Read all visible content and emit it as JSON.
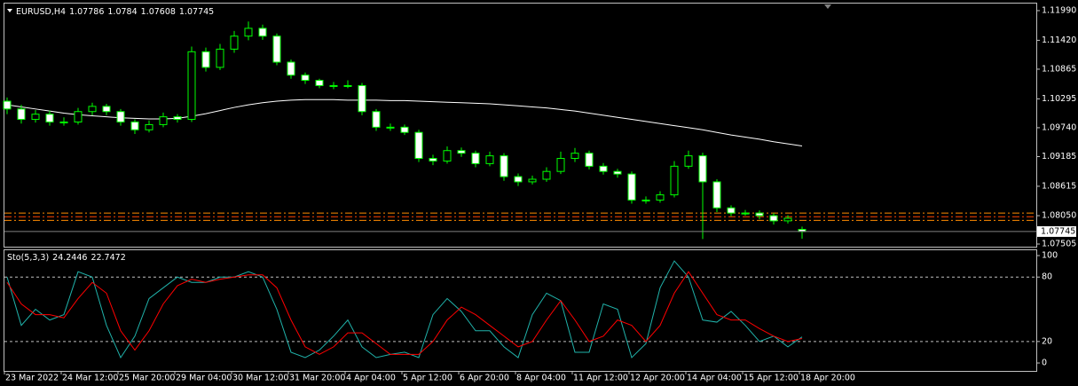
{
  "chart_data": {
    "type": "candlestick",
    "symbol": "EURUSD,H4",
    "categories": [
      "23 Mar 2022",
      null,
      null,
      null,
      "24 Mar 12:00",
      null,
      null,
      null,
      "25 Mar 20:00",
      null,
      null,
      null,
      "29 Mar 04:00",
      null,
      null,
      null,
      "30 Mar 12:00",
      null,
      null,
      null,
      "31 Mar 20:00",
      null,
      null,
      null,
      "4 Apr 04:00",
      null,
      null,
      null,
      "5 Apr 12:00",
      null,
      null,
      null,
      "6 Apr 20:00",
      null,
      null,
      null,
      "8 Apr 04:00",
      null,
      null,
      null,
      "11 Apr 12:00",
      null,
      null,
      null,
      "12 Apr 20:00",
      null,
      null,
      null,
      "14 Apr 04:00",
      null,
      null,
      null,
      "15 Apr 12:00",
      null,
      null,
      null,
      "18 Apr 20:00"
    ],
    "open": [
      1.1025,
      1.101,
      1.099,
      1.1,
      1.0985,
      1.0985,
      1.1005,
      1.1015,
      1.1005,
      1.0985,
      1.097,
      1.098,
      1.0995,
      1.099,
      1.112,
      1.109,
      1.1125,
      1.115,
      1.1165,
      1.115,
      1.11,
      1.1075,
      1.1065,
      1.1055,
      1.1055,
      1.1055,
      1.1005,
      1.0975,
      1.0975,
      1.0965,
      1.0915,
      1.091,
      1.093,
      1.0925,
      1.0905,
      1.092,
      1.088,
      1.087,
      1.0875,
      1.089,
      1.0915,
      1.0925,
      1.09,
      1.089,
      1.0885,
      1.0835,
      1.0835,
      1.0845,
      1.09,
      1.092,
      1.087,
      1.082,
      1.081,
      1.081,
      1.0805,
      1.0795,
      1.07786
    ],
    "high": [
      1.1032,
      1.1018,
      1.1008,
      1.1007,
      1.0994,
      1.1012,
      1.1022,
      1.102,
      1.101,
      1.099,
      1.0988,
      1.1003,
      1.1,
      1.113,
      1.1128,
      1.1135,
      1.116,
      1.1178,
      1.1172,
      1.1155,
      1.1105,
      1.108,
      1.1068,
      1.1062,
      1.1065,
      1.106,
      1.101,
      1.0982,
      1.098,
      1.097,
      1.0922,
      1.0938,
      1.0936,
      1.093,
      1.0928,
      1.0925,
      1.0886,
      1.0882,
      1.0898,
      1.0928,
      1.0935,
      1.093,
      1.0906,
      1.0895,
      1.089,
      1.0842,
      1.0852,
      1.091,
      1.093,
      1.0926,
      1.0875,
      1.0825,
      1.0816,
      1.0815,
      1.081,
      1.0806,
      1.0784
    ],
    "low": [
      1.1,
      1.0982,
      1.0984,
      1.0978,
      1.0978,
      1.098,
      1.0998,
      1.0998,
      1.0978,
      1.0962,
      1.0965,
      1.0975,
      1.0984,
      1.0985,
      1.1082,
      1.1085,
      1.1118,
      1.1142,
      1.1143,
      1.1094,
      1.1068,
      1.1058,
      1.105,
      1.1048,
      1.105,
      1.0998,
      1.0968,
      1.0968,
      1.096,
      1.0908,
      1.0902,
      1.0905,
      1.0918,
      1.0898,
      1.09,
      1.0872,
      1.0862,
      1.0865,
      1.087,
      1.0885,
      1.0908,
      1.0894,
      1.0884,
      1.0878,
      1.0828,
      1.0828,
      1.083,
      1.084,
      1.0895,
      1.076,
      1.0812,
      1.0804,
      1.0805,
      1.0798,
      1.0788,
      1.079,
      1.07608
    ],
    "close": [
      1.101,
      1.099,
      1.1,
      1.0985,
      1.0985,
      1.1005,
      1.1015,
      1.1005,
      1.0985,
      1.097,
      1.098,
      1.0995,
      1.099,
      1.112,
      1.109,
      1.1125,
      1.115,
      1.1165,
      1.115,
      1.11,
      1.1075,
      1.1065,
      1.1055,
      1.1055,
      1.1055,
      1.1005,
      1.0975,
      1.0975,
      1.0965,
      1.0915,
      1.091,
      1.093,
      1.0925,
      1.0905,
      1.092,
      1.088,
      1.087,
      1.0875,
      1.089,
      1.0915,
      1.0925,
      1.09,
      1.089,
      1.0885,
      1.0835,
      1.0835,
      1.0845,
      1.09,
      1.092,
      1.087,
      1.082,
      1.081,
      1.081,
      1.0805,
      1.0795,
      1.08,
      1.07745
    ],
    "line_color": "#00ff00",
    "up_color": "#000000",
    "down_color": "#ffffff",
    "ylim": [
      1.07454,
      1.12143
    ],
    "yticks": [
      {
        "value": 1.1199,
        "label": "1.11990"
      },
      {
        "value": 1.1142,
        "label": "1.11420"
      },
      1.10865,
      1.10295,
      {
        "value": 1.0974,
        "label": "1.09740"
      },
      1.09185,
      1.08615,
      {
        "value": 1.0805,
        "label": "1.08050"
      },
      1.07505
    ],
    "moving_average": {
      "color": "#ffffff",
      "values": [
        1.1018,
        1.1014,
        1.101,
        1.1006,
        1.1002,
        1.0999,
        1.0997,
        1.0995,
        1.0993,
        1.0992,
        1.0991,
        1.0991,
        1.0992,
        1.0996,
        1.1001,
        1.1007,
        1.1013,
        1.1018,
        1.1022,
        1.1025,
        1.1027,
        1.1028,
        1.1028,
        1.1028,
        1.1027,
        1.1027,
        1.1027,
        1.1026,
        1.1026,
        1.1025,
        1.1024,
        1.1023,
        1.1022,
        1.1021,
        1.102,
        1.1018,
        1.1016,
        1.1014,
        1.1012,
        1.1009,
        1.1006,
        1.1002,
        1.0998,
        1.0994,
        1.099,
        1.0986,
        1.0982,
        1.0978,
        1.0974,
        1.097,
        1.0965,
        1.096,
        1.0956,
        1.0952,
        1.0947,
        1.0943,
        1.0939
      ]
    },
    "hlines": [
      {
        "value": 1.081,
        "color": "#ff8c00"
      },
      {
        "value": 1.0803,
        "color": "#ff4500"
      },
      {
        "value": 1.0796,
        "color": "#ff8c00"
      }
    ],
    "price_line_color": "#808080",
    "indicator": {
      "type": "line",
      "title": "Sto(5,3,3)",
      "series": [
        {
          "color": "#20b2aa",
          "values": [
            80,
            35,
            50,
            40,
            45,
            85,
            80,
            35,
            5,
            25,
            60,
            70,
            80,
            75,
            75,
            80,
            80,
            85,
            80,
            50,
            10,
            5,
            12,
            25,
            40,
            15,
            5,
            8,
            10,
            5,
            45,
            60,
            48,
            30,
            30,
            15,
            5,
            45,
            65,
            58,
            10,
            10,
            55,
            50,
            5,
            18,
            70,
            95,
            80,
            40,
            38,
            48,
            35,
            20,
            25,
            15,
            24.2446
          ]
        },
        {
          "color": "#ff0000",
          "values": [
            75,
            55,
            45,
            45,
            42,
            60,
            75,
            65,
            30,
            12,
            30,
            55,
            72,
            78,
            75,
            78,
            80,
            82,
            82,
            70,
            40,
            15,
            8,
            15,
            28,
            28,
            18,
            8,
            8,
            8,
            20,
            40,
            52,
            45,
            35,
            25,
            15,
            20,
            40,
            58,
            40,
            20,
            25,
            40,
            35,
            20,
            35,
            65,
            85,
            65,
            45,
            40,
            40,
            32,
            25,
            20,
            22.7472
          ]
        }
      ],
      "ylim": [
        -7.4,
        105.8
      ],
      "yticks": [
        100,
        80,
        20,
        0
      ],
      "levels": [
        80,
        20
      ]
    }
  }
}
